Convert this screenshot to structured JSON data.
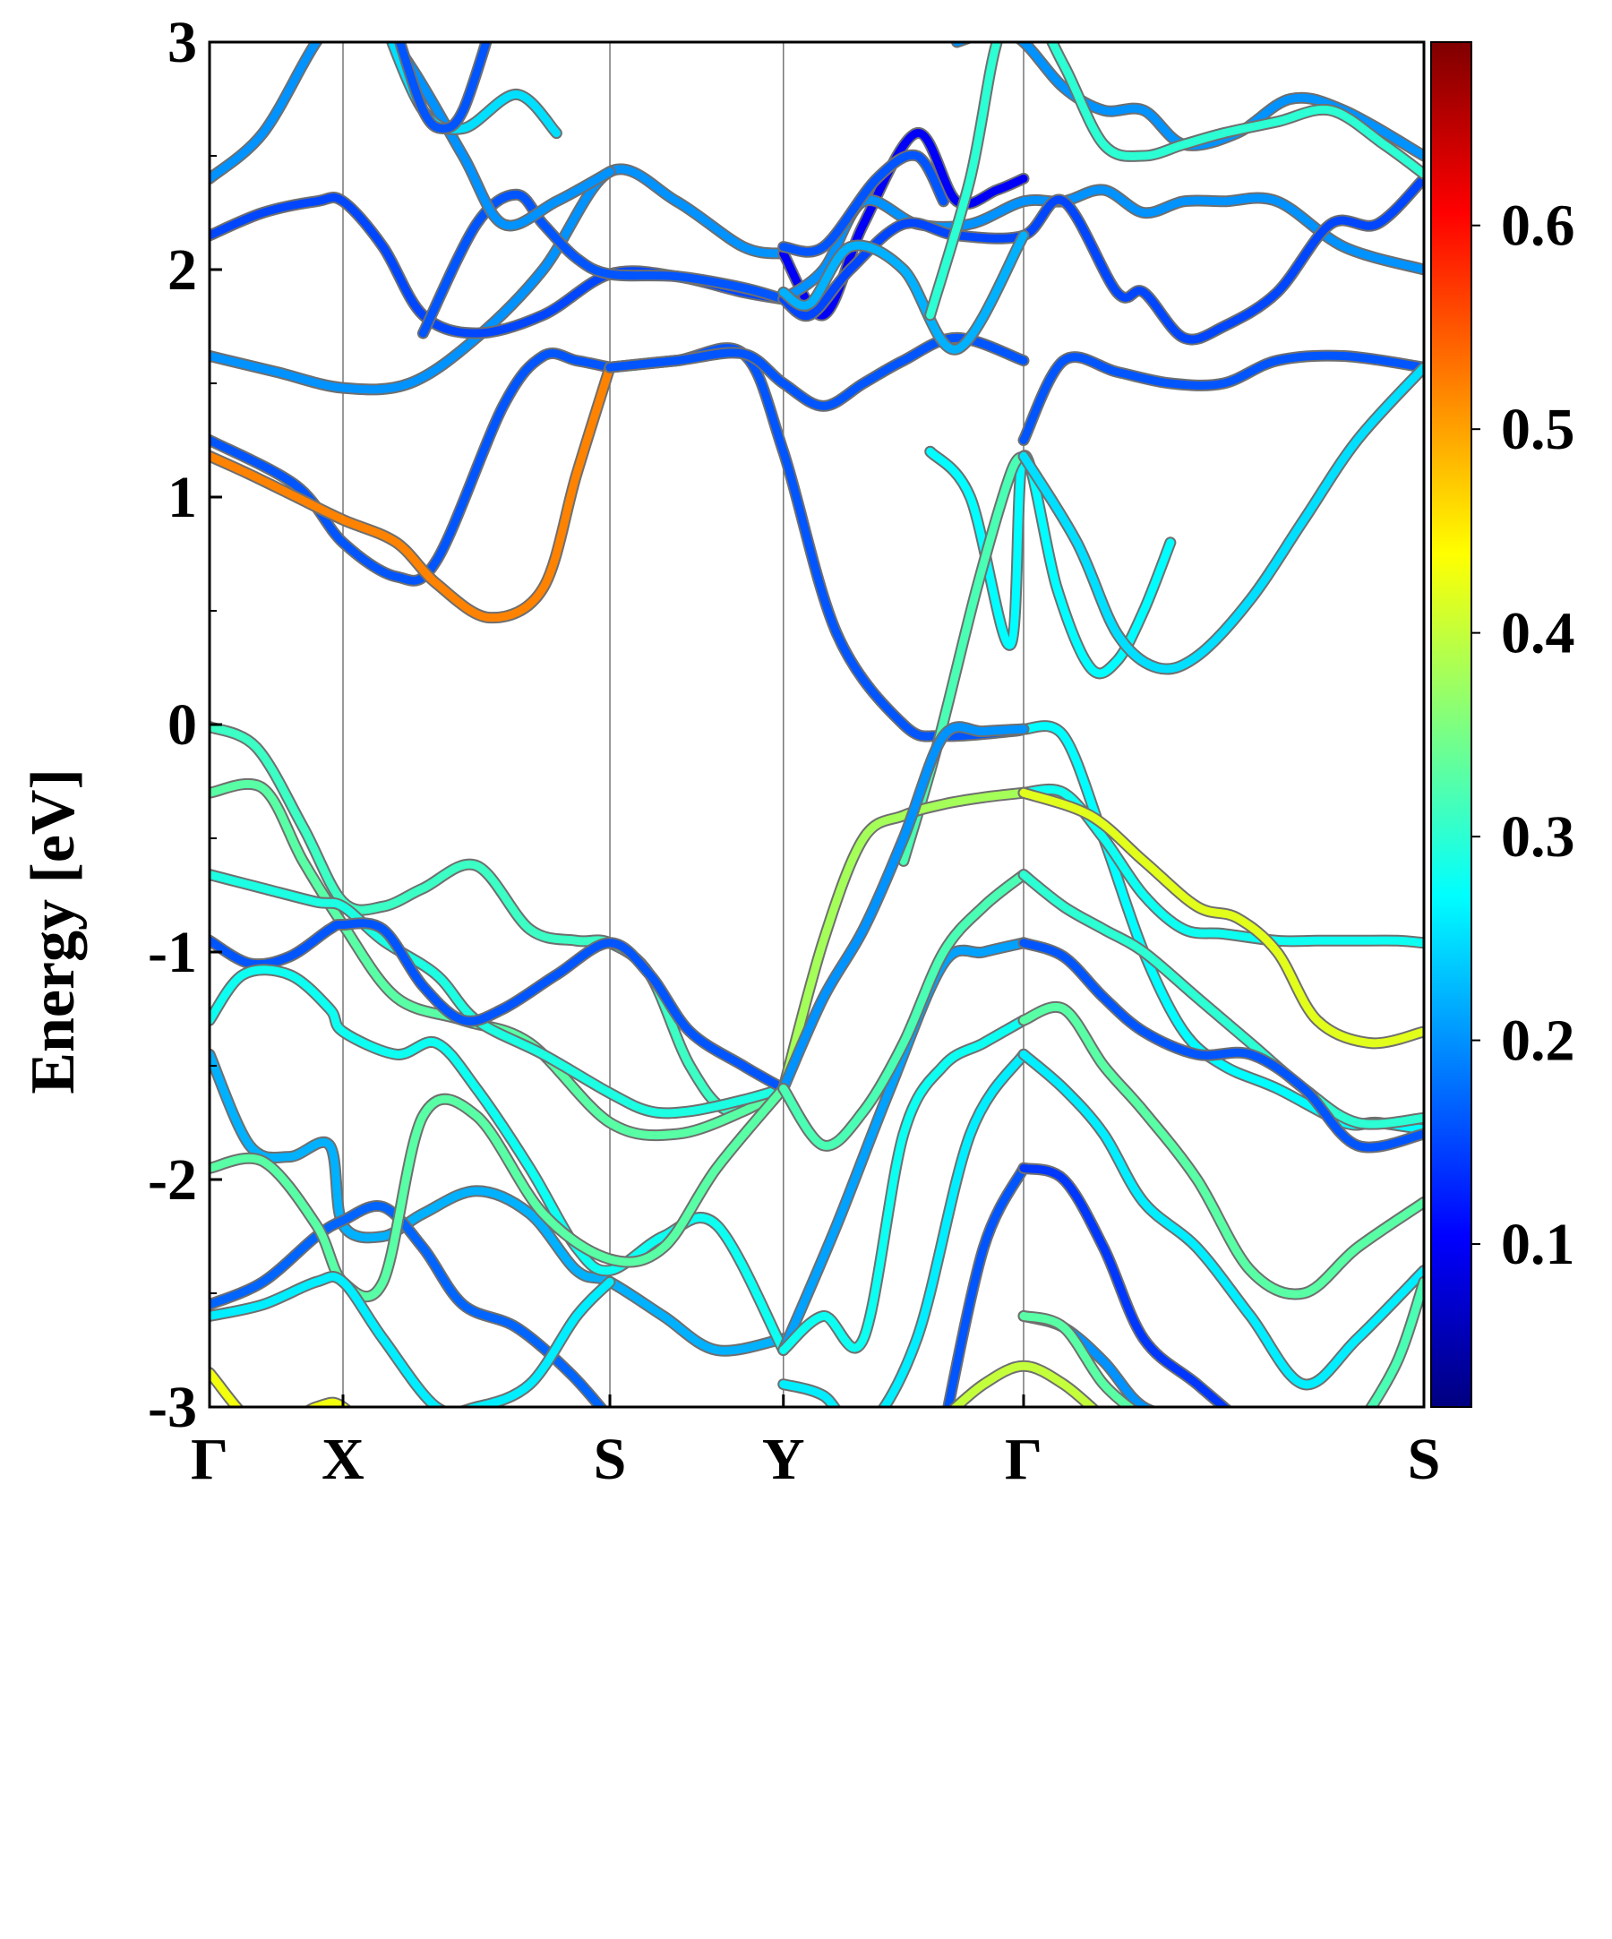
{
  "chart_data": {
    "type": "line",
    "title": "",
    "xlabel": "",
    "ylabel": "Energy [eV]",
    "ylim": [
      -3,
      3
    ],
    "y_ticks": [
      "3",
      "2",
      "1",
      "0",
      "-1",
      "-2",
      "-3"
    ],
    "k_path_labels": [
      "Γ",
      "X",
      "S",
      "Y",
      "Γ",
      "S"
    ],
    "colorbar": {
      "colormap": "jet",
      "range": [
        0.02,
        0.69
      ],
      "ticks": [
        "0.6",
        "0.5",
        "0.4",
        "0.3",
        "0.2",
        "0.1"
      ]
    },
    "colors": {
      "jet": [
        "#00007f",
        "#0000ff",
        "#007fff",
        "#00ffff",
        "#7fff7f",
        "#ffff00",
        "#ff7f00",
        "#ff0000",
        "#7f0000"
      ]
    },
    "series": [
      {
        "w": 0.16,
        "x": [
          0,
          0.65,
          1.0,
          1.4,
          1.7,
          2.2,
          2.5,
          2.75,
          3.0
        ],
        "y": [
          1.25,
          1.05,
          0.8,
          0.65,
          0.72,
          1.4,
          1.62,
          1.6,
          1.57
        ]
      },
      {
        "w": 0.52,
        "x": [
          0,
          0.3,
          0.65,
          1.0,
          1.4,
          1.7,
          2.1,
          2.5,
          2.75,
          3.0
        ],
        "y": [
          1.18,
          1.1,
          1.0,
          0.9,
          0.8,
          0.62,
          0.47,
          0.6,
          1.1,
          1.57
        ]
      },
      {
        "w": 0.16,
        "x": [
          3.0,
          3.5,
          4.0,
          4.3,
          4.7,
          5.2,
          5.5,
          6.0,
          6.1
        ],
        "y": [
          1.57,
          1.6,
          1.63,
          1.2,
          0.4,
          0.0,
          -0.05,
          -0.03,
          -0.02
        ]
      },
      {
        "w": 0.27,
        "x": [
          6.1,
          6.4,
          6.7,
          7.0,
          7.3,
          7.6,
          8.0,
          8.5,
          8.75,
          9.1
        ],
        "y": [
          -0.02,
          -0.05,
          -0.5,
          -1.0,
          -1.35,
          -1.5,
          -1.6,
          -1.75,
          -1.75,
          -1.78
        ]
      },
      {
        "w": 0.16,
        "x": [
          3.0,
          3.5,
          4.0,
          4.3,
          4.6,
          4.9,
          5.2,
          5.6,
          6.1
        ],
        "y": [
          1.57,
          1.6,
          1.63,
          1.5,
          1.4,
          1.5,
          1.6,
          1.7,
          1.6
        ]
      },
      {
        "w": 0.16,
        "x": [
          6.1,
          6.4,
          6.8,
          7.2,
          7.6,
          8.0,
          8.5,
          9.1
        ],
        "y": [
          1.25,
          1.6,
          1.55,
          1.5,
          1.5,
          1.6,
          1.62,
          1.57
        ]
      },
      {
        "w": 0.2,
        "x": [
          0,
          0.5,
          1.0,
          1.5,
          2.0,
          2.5,
          3.0,
          3.5,
          4.0,
          4.3
        ],
        "y": [
          1.62,
          1.55,
          1.48,
          1.5,
          1.7,
          2.0,
          2.43,
          2.3,
          2.1,
          2.07
        ]
      },
      {
        "w": 0.15,
        "x": [
          0,
          0.4,
          0.8,
          1.0,
          1.3,
          1.6,
          2.0,
          2.5,
          3.0,
          3.5,
          4.0,
          4.3
        ],
        "y": [
          2.15,
          2.25,
          2.3,
          2.3,
          2.1,
          1.8,
          1.72,
          1.8,
          1.98,
          1.97,
          1.9,
          1.87
        ]
      },
      {
        "w": 0.16,
        "x": [
          1.6,
          2.0,
          2.3,
          2.5,
          2.75,
          3.0,
          3.5,
          4.0,
          4.3
        ],
        "y": [
          1.72,
          2.2,
          2.33,
          2.2,
          2.05,
          1.98,
          1.97,
          1.92,
          1.87
        ]
      },
      {
        "w": 0.2,
        "x": [
          0,
          0.4,
          0.8,
          1.1,
          1.5,
          1.9,
          2.2,
          2.6,
          3.0
        ],
        "y": [
          2.4,
          2.6,
          3.0,
          3.2,
          2.9,
          2.5,
          2.2,
          2.3,
          2.43
        ]
      },
      {
        "w": 0.25,
        "x": [
          1.3,
          1.6,
          1.9,
          2.3,
          2.6
        ],
        "y": [
          3.1,
          2.7,
          2.62,
          2.77,
          2.6
        ]
      },
      {
        "w": 0.16,
        "x": [
          1.4,
          1.6,
          1.75,
          1.9,
          2.1
        ],
        "y": [
          3.05,
          2.7,
          2.62,
          2.7,
          3.05
        ]
      },
      {
        "w": 0.1,
        "x": [
          4.3,
          4.6,
          4.9,
          5.3,
          5.6,
          5.9,
          6.1
        ],
        "y": [
          2.07,
          1.8,
          2.2,
          2.6,
          2.3,
          2.35,
          2.4
        ]
      },
      {
        "w": 0.2,
        "x": [
          4.3,
          4.6,
          4.9,
          5.3,
          5.7,
          6.1,
          6.4,
          6.7,
          7.0,
          7.3,
          7.6,
          8.0,
          8.5,
          9.1
        ],
        "y": [
          1.87,
          2.0,
          2.3,
          2.2,
          2.2,
          2.3,
          2.3,
          2.35,
          2.25,
          2.3,
          2.3,
          2.3,
          2.1,
          2.0
        ]
      },
      {
        "w": 0.15,
        "x": [
          4.3,
          4.5,
          4.8,
          5.2,
          5.6,
          6.1,
          6.4,
          6.8,
          7.0,
          7.3,
          7.6,
          8.0,
          8.4,
          8.75,
          9.1
        ],
        "y": [
          1.87,
          1.8,
          2.0,
          2.2,
          2.15,
          2.15,
          2.3,
          1.9,
          1.9,
          1.7,
          1.75,
          1.9,
          2.2,
          2.2,
          2.4
        ]
      },
      {
        "w": 0.22,
        "x": [
          4.3,
          4.5,
          4.8,
          5.2,
          5.6,
          6.1
        ],
        "y": [
          1.9,
          1.85,
          2.1,
          2.0,
          1.65,
          2.15
        ]
      },
      {
        "w": 0.2,
        "x": [
          5.6,
          5.9,
          6.1,
          6.4,
          6.7,
          7.0,
          7.3,
          7.7,
          8.1,
          8.5,
          9.1
        ],
        "y": [
          3.0,
          3.05,
          3.0,
          2.8,
          2.7,
          2.7,
          2.55,
          2.6,
          2.75,
          2.7,
          2.5
        ]
      },
      {
        "w": 0.3,
        "x": [
          5.4,
          5.7,
          5.9,
          6.1,
          6.4,
          6.7,
          7.0,
          7.3,
          7.6,
          8.0,
          8.4,
          8.8,
          9.1
        ],
        "y": [
          1.8,
          2.4,
          3.0,
          3.2,
          2.9,
          2.55,
          2.5,
          2.55,
          2.6,
          2.65,
          2.7,
          2.55,
          2.42
        ]
      },
      {
        "w": 0.16,
        "x": [
          4.3,
          4.6,
          5.0,
          5.3,
          5.5
        ],
        "y": [
          2.1,
          2.1,
          2.4,
          2.5,
          2.3
        ]
      },
      {
        "w": 0.27,
        "x": [
          5.4,
          5.7,
          6.0,
          6.1,
          6.35,
          6.6,
          6.8,
          7.0,
          7.2
        ],
        "y": [
          1.2,
          1.0,
          0.35,
          1.18,
          0.6,
          0.25,
          0.28,
          0.5,
          0.8
        ]
      },
      {
        "w": 0.32,
        "x": [
          5.2,
          5.45,
          5.75,
          6.0,
          6.1
        ],
        "y": [
          -0.6,
          -0.1,
          0.6,
          1.1,
          1.18
        ]
      },
      {
        "w": 0.25,
        "x": [
          6.1,
          6.5,
          6.8,
          7.1,
          7.4,
          7.8,
          8.2,
          8.6,
          9.1
        ],
        "y": [
          1.18,
          0.8,
          0.4,
          0.25,
          0.3,
          0.55,
          0.9,
          1.25,
          1.57
        ]
      },
      {
        "w": 0.31,
        "x": [
          0,
          0.35,
          0.7,
          1.0,
          1.3,
          1.6,
          2.0,
          2.4,
          2.75,
          3.0,
          3.3,
          3.6,
          3.9,
          4.3
        ],
        "y": [
          -0.01,
          -0.1,
          -0.45,
          -0.78,
          -0.8,
          -0.72,
          -0.62,
          -0.9,
          -0.95,
          -0.96,
          -1.1,
          -1.5,
          -1.7,
          -1.6
        ]
      },
      {
        "w": 0.33,
        "x": [
          0,
          0.4,
          0.7,
          1.0,
          1.4,
          1.9,
          2.4,
          3.0,
          3.5,
          4.0,
          4.3
        ],
        "y": [
          -0.3,
          -0.28,
          -0.6,
          -0.88,
          -1.2,
          -1.3,
          -1.4,
          -1.75,
          -1.8,
          -1.7,
          -1.6
        ]
      },
      {
        "w": 0.29,
        "x": [
          0,
          0.4,
          0.8,
          1.0,
          1.3,
          1.7,
          2.0,
          2.5,
          3.0,
          3.3,
          3.6,
          4.0,
          4.3
        ],
        "y": [
          -0.66,
          -0.72,
          -0.78,
          -0.8,
          -0.95,
          -1.1,
          -1.3,
          -1.45,
          -1.62,
          -1.7,
          -1.7,
          -1.65,
          -1.6
        ]
      },
      {
        "w": 0.16,
        "x": [
          0,
          0.3,
          0.6,
          0.9,
          1.0,
          1.3,
          1.6,
          1.9,
          2.2,
          2.6,
          3.0,
          3.3,
          3.6,
          4.0,
          4.3
        ],
        "y": [
          -0.95,
          -1.05,
          -1.02,
          -0.9,
          -0.88,
          -0.9,
          -1.15,
          -1.3,
          -1.25,
          -1.1,
          -0.96,
          -1.1,
          -1.35,
          -1.5,
          -1.6
        ]
      },
      {
        "w": 0.22,
        "x": [
          0,
          0.3,
          0.6,
          0.9,
          1.0,
          1.3,
          1.6,
          2.0,
          2.4,
          2.75,
          3.0,
          3.4,
          3.8,
          4.3
        ],
        "y": [
          -1.45,
          -1.85,
          -1.9,
          -1.85,
          -2.2,
          -2.25,
          -2.15,
          -2.05,
          -2.15,
          -2.4,
          -2.45,
          -2.6,
          -2.75,
          -2.7
        ]
      },
      {
        "w": 0.28,
        "x": [
          0,
          0.25,
          0.6,
          0.9,
          1.0,
          1.4,
          1.7,
          2.0,
          2.4,
          2.75,
          3.0,
          3.4,
          3.8,
          4.3
        ],
        "y": [
          -1.3,
          -1.1,
          -1.1,
          -1.25,
          -1.35,
          -1.45,
          -1.4,
          -1.6,
          -1.95,
          -2.3,
          -2.4,
          -2.25,
          -2.2,
          -2.75
        ]
      },
      {
        "w": 0.17,
        "x": [
          0,
          0.4,
          0.8,
          1.0,
          1.3,
          1.6,
          1.9,
          2.3,
          2.7,
          3.0
        ],
        "y": [
          -2.55,
          -2.45,
          -2.25,
          -2.18,
          -2.12,
          -2.3,
          -2.55,
          -2.65,
          -2.85,
          -3.05
        ]
      },
      {
        "w": 0.33,
        "x": [
          0,
          0.4,
          0.8,
          1.0,
          1.3,
          1.6,
          2.0,
          2.5,
          3.0,
          3.4,
          3.8,
          4.3
        ],
        "y": [
          -1.95,
          -1.92,
          -2.2,
          -2.45,
          -2.45,
          -1.72,
          -1.72,
          -2.15,
          -2.35,
          -2.3,
          -1.95,
          -1.6
        ]
      },
      {
        "w": 0.26,
        "x": [
          0,
          0.4,
          0.8,
          1.0,
          1.3,
          1.7,
          2.0,
          2.4,
          2.75,
          3.0
        ],
        "y": [
          -2.6,
          -2.55,
          -2.45,
          -2.45,
          -2.7,
          -3.0,
          -3.0,
          -2.9,
          -2.6,
          -2.45
        ]
      },
      {
        "w": 0.43,
        "x": [
          0,
          0.4,
          0.8,
          1.0,
          1.3
        ],
        "y": [
          -2.85,
          -3.1,
          -3.0,
          -3.0,
          -3.2
        ]
      },
      {
        "w": 0.38,
        "x": [
          4.3,
          4.6,
          4.9,
          5.2,
          5.5,
          5.8,
          6.1
        ],
        "y": [
          -1.6,
          -0.95,
          -0.5,
          -0.4,
          -0.35,
          -0.32,
          -0.3
        ]
      },
      {
        "w": 0.2,
        "x": [
          4.3,
          4.6,
          4.9,
          5.2,
          5.5,
          5.8,
          6.1
        ],
        "y": [
          -1.6,
          -1.2,
          -0.9,
          -0.5,
          -0.05,
          -0.03,
          -0.02
        ]
      },
      {
        "w": 0.21,
        "x": [
          4.3,
          4.7,
          5.1,
          5.5,
          5.8,
          6.1
        ],
        "y": [
          -2.75,
          -2.2,
          -1.6,
          -1.05,
          -1.0,
          -0.96
        ]
      },
      {
        "w": 0.32,
        "x": [
          4.3,
          4.6,
          4.9,
          5.2,
          5.5,
          5.8,
          6.1
        ],
        "y": [
          -1.6,
          -1.85,
          -1.7,
          -1.4,
          -1.0,
          -0.8,
          -0.66
        ]
      },
      {
        "w": 0.28,
        "x": [
          4.3,
          4.6,
          4.9,
          5.2,
          5.5,
          5.8,
          6.1
        ],
        "y": [
          -2.75,
          -2.6,
          -2.7,
          -1.8,
          -1.5,
          -1.4,
          -1.3
        ]
      },
      {
        "w": 0.26,
        "x": [
          4.3,
          4.6,
          4.9,
          5.3,
          5.7,
          6.1
        ],
        "y": [
          -2.9,
          -2.95,
          -3.1,
          -2.7,
          -1.8,
          -1.45
        ]
      },
      {
        "w": 0.16,
        "x": [
          5.5,
          5.8,
          6.1
        ],
        "y": [
          -3.1,
          -2.3,
          -1.95
        ]
      },
      {
        "w": 0.28,
        "x": [
          6.1,
          6.4,
          6.7,
          7.0,
          7.3,
          7.6,
          8.0,
          8.3,
          8.6,
          8.9,
          9.1
        ],
        "y": [
          -0.3,
          -0.3,
          -0.5,
          -0.75,
          -0.9,
          -0.92,
          -0.95,
          -0.95,
          -0.95,
          -0.95,
          -0.96
        ]
      },
      {
        "w": 0.42,
        "x": [
          6.1,
          6.6,
          7.0,
          7.4,
          7.7,
          8.0,
          8.3,
          8.7,
          9.1
        ],
        "y": [
          -0.3,
          -0.4,
          -0.6,
          -0.8,
          -0.85,
          -1.0,
          -1.3,
          -1.4,
          -1.35
        ]
      },
      {
        "w": 0.3,
        "x": [
          6.1,
          6.4,
          6.7,
          7.0,
          7.4,
          7.8,
          8.2,
          8.6,
          9.1
        ],
        "y": [
          -0.66,
          -0.8,
          -0.9,
          -1.0,
          -1.2,
          -1.4,
          -1.6,
          -1.75,
          -1.73
        ]
      },
      {
        "w": 0.16,
        "x": [
          6.1,
          6.4,
          6.7,
          7.0,
          7.4,
          7.8,
          8.2,
          8.6,
          9.1
        ],
        "y": [
          -0.96,
          -1.02,
          -1.2,
          -1.35,
          -1.45,
          -1.45,
          -1.6,
          -1.85,
          -1.8
        ]
      },
      {
        "w": 0.33,
        "x": [
          6.1,
          6.4,
          6.7,
          7.0,
          7.4,
          7.8,
          8.2,
          8.6,
          9.1
        ],
        "y": [
          -1.3,
          -1.25,
          -1.5,
          -1.7,
          -2.0,
          -2.4,
          -2.5,
          -2.3,
          -2.1
        ]
      },
      {
        "w": 0.26,
        "x": [
          6.1,
          6.4,
          6.7,
          7.0,
          7.4,
          7.8,
          8.2,
          8.6,
          9.1
        ],
        "y": [
          -1.45,
          -1.6,
          -1.8,
          -2.1,
          -2.3,
          -2.6,
          -2.9,
          -2.7,
          -2.4
        ]
      },
      {
        "w": 0.14,
        "x": [
          6.1,
          6.4,
          6.7,
          7.0,
          7.4,
          7.8
        ],
        "y": [
          -1.95,
          -2.0,
          -2.3,
          -2.7,
          -2.9,
          -3.1
        ]
      },
      {
        "w": 0.2,
        "x": [
          6.1,
          6.4,
          6.7,
          7.0,
          7.4,
          7.8
        ],
        "y": [
          -2.6,
          -2.65,
          -2.8,
          -3.0,
          -3.05,
          -3.1
        ]
      },
      {
        "w": 0.33,
        "x": [
          6.1,
          6.4,
          6.7,
          7.0
        ],
        "y": [
          -2.6,
          -2.65,
          -2.9,
          -3.05
        ]
      },
      {
        "w": 0.4,
        "x": [
          5.5,
          5.8,
          6.1,
          6.4,
          6.7
        ],
        "y": [
          -3.05,
          -2.9,
          -2.82,
          -2.9,
          -3.05
        ]
      },
      {
        "w": 0.32,
        "x": [
          8.6,
          8.9,
          9.1
        ],
        "y": [
          -3.1,
          -2.8,
          -2.45
        ]
      }
    ]
  }
}
